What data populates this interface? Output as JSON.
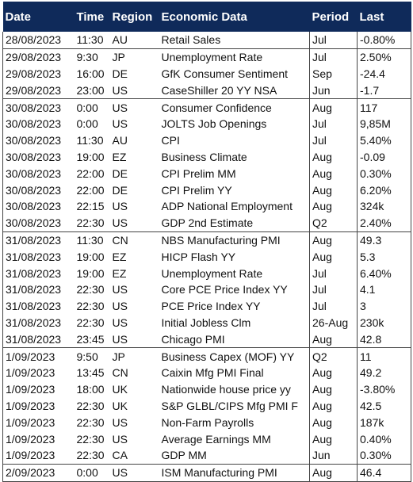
{
  "table": {
    "header": [
      "Date",
      "Time",
      "Region",
      "Economic Data",
      "Period",
      "Last"
    ],
    "rows": [
      [
        "28/08/2023",
        "11:30",
        "AU",
        "Retail Sales",
        "Jul",
        "-0.80%"
      ],
      [
        "29/08/2023",
        "9:30",
        "JP",
        "Unemployment Rate",
        "Jul",
        "2.50%"
      ],
      [
        "29/08/2023",
        "16:00",
        "DE",
        "GfK Consumer Sentiment",
        "Sep",
        "-24.4"
      ],
      [
        "29/08/2023",
        "23:00",
        "US",
        "CaseShiller 20 YY NSA",
        "Jun",
        "-1.7"
      ],
      [
        "30/08/2023",
        "0:00",
        "US",
        "Consumer Confidence",
        "Aug",
        "117"
      ],
      [
        "30/08/2023",
        "0:00",
        "US",
        "JOLTS Job Openings",
        "Jul",
        "9,85M"
      ],
      [
        "30/08/2023",
        "11:30",
        "AU",
        "CPI",
        "Jul",
        "5.40%"
      ],
      [
        "30/08/2023",
        "19:00",
        "EZ",
        "Business Climate",
        "Aug",
        "-0.09"
      ],
      [
        "30/08/2023",
        "22:00",
        "DE",
        "CPI Prelim MM",
        "Aug",
        "0.30%"
      ],
      [
        "30/08/2023",
        "22:00",
        "DE",
        "CPI Prelim YY",
        "Aug",
        "6.20%"
      ],
      [
        "30/08/2023",
        "22:15",
        "US",
        "ADP National Employment",
        "Aug",
        "324k"
      ],
      [
        "30/08/2023",
        "22:30",
        "US",
        "GDP 2nd Estimate",
        "Q2",
        "2.40%"
      ],
      [
        "31/08/2023",
        "11:30",
        "CN",
        "NBS Manufacturing PMI",
        "Aug",
        "49.3"
      ],
      [
        "31/08/2023",
        "19:00",
        "EZ",
        "HICP Flash YY",
        "Aug",
        "5.3"
      ],
      [
        "31/08/2023",
        "19:00",
        "EZ",
        "Unemployment Rate",
        "Jul",
        "6.40%"
      ],
      [
        "31/08/2023",
        "22:30",
        "US",
        "Core PCE Price Index YY",
        "Jul",
        "4.1"
      ],
      [
        "31/08/2023",
        "22:30",
        "US",
        "PCE Price Index YY",
        "Jul",
        "3"
      ],
      [
        "31/08/2023",
        "22:30",
        "US",
        "Initial Jobless Clm",
        "26-Aug",
        "230k"
      ],
      [
        "31/08/2023",
        "23:45",
        "US",
        "Chicago PMI",
        "Aug",
        "42.8"
      ],
      [
        "1/09/2023",
        "9:50",
        "JP",
        "Business Capex (MOF) YY",
        "Q2",
        "11"
      ],
      [
        "1/09/2023",
        "13:45",
        "CN",
        "Caixin Mfg PMI Final",
        "Aug",
        "49.2"
      ],
      [
        "1/09/2023",
        "18:00",
        "UK",
        "Nationwide house price yy",
        "Aug",
        "-3.80%"
      ],
      [
        "1/09/2023",
        "22:30",
        "UK",
        "S&P GLBL/CIPS Mfg PMI F",
        "Aug",
        "42.5"
      ],
      [
        "1/09/2023",
        "22:30",
        "US",
        "Non-Farm Payrolls",
        "Aug",
        "187k"
      ],
      [
        "1/09/2023",
        "22:30",
        "US",
        "Average Earnings MM",
        "Aug",
        "0.40%"
      ],
      [
        "1/09/2023",
        "22:30",
        "CA",
        "GDP MM",
        "Jun",
        "0.30%"
      ],
      [
        "2/09/2023",
        "0:00",
        "US",
        "ISM Manufacturing PMI",
        "Aug",
        "46.4"
      ]
    ]
  }
}
